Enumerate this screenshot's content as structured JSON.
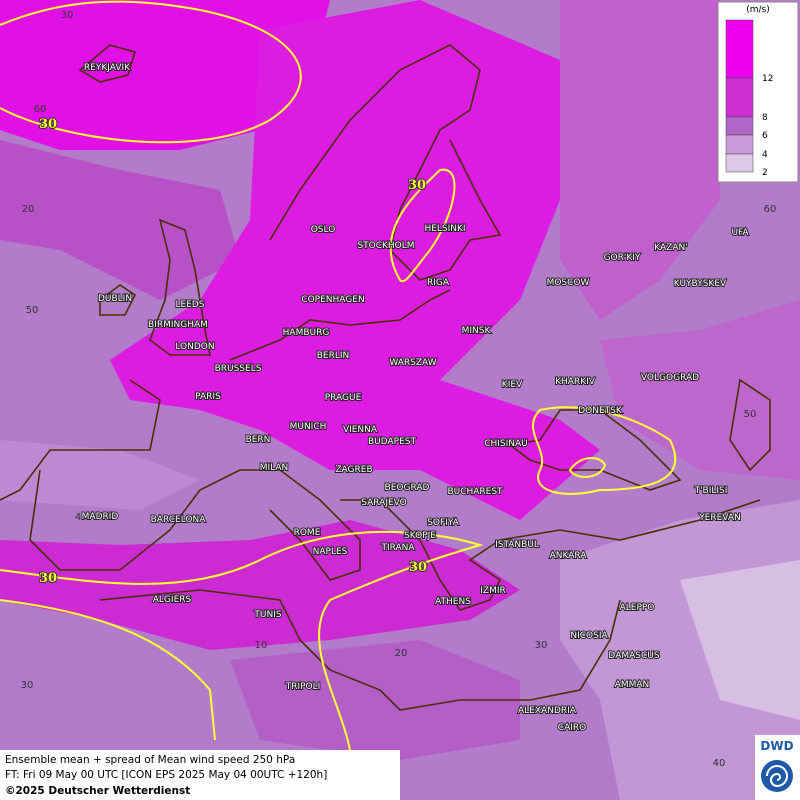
{
  "legend": {
    "unit": "(m/s)",
    "ticks": [
      "2",
      "4",
      "6",
      "8",
      "12"
    ]
  },
  "cities": [
    "REYKJAVIK",
    "OSLO",
    "STOCKHOLM",
    "HELSINKI",
    "RIGA",
    "MOSCOW",
    "GOR'KIY",
    "KAZAN'",
    "UFA",
    "KUYBYSKEV",
    "DUBLIN",
    "LEEDS",
    "BIRMINGHAM",
    "LONDON",
    "COPENHAGEN",
    "HAMBURG",
    "BERLIN",
    "MINSK",
    "WARSZAW",
    "KIEV",
    "KHARKIV",
    "VOLGOGRAD",
    "BRUSSELS",
    "PARIS",
    "PRAGUE",
    "DONETSK",
    "BERN",
    "MUNICH",
    "VIENNA",
    "BUDAPEST",
    "CHISINAU",
    "MILAN",
    "ZAGREB",
    "BEOGRAD",
    "BUCHAREST",
    "T'BILISI",
    "MADRID",
    "BARCELONA",
    "SARAJEVO",
    "SOFIYA",
    "YEREVAN",
    "ROME",
    "SKOPJE",
    "ISTANBUL",
    "NAPLES",
    "TIRANA",
    "ANKARA",
    "ALGIERS",
    "IZMIR",
    "ATHENS",
    "ALEPPO",
    "TUNIS",
    "NICOSIA",
    "DAMASCUS",
    "TRIPOLI",
    "AMMAN",
    "ALEXANDRIA",
    "CAIRO"
  ],
  "grid_labels": [
    "30",
    "60",
    "20",
    "50",
    "4",
    "10",
    "20",
    "30",
    "60",
    "50",
    "40",
    "30"
  ],
  "contour_labels": [
    "30",
    "30",
    "30",
    "30"
  ],
  "footer": {
    "line1": "Ensemble mean + spread of Mean wind speed 250 hPa",
    "line2": "FT: Fri 09 May 00 UTC [ICON EPS 2025 May 04 00UTC +120h]",
    "line3": "©2025 Deutscher Wetterdienst"
  },
  "logo": "DWD"
}
